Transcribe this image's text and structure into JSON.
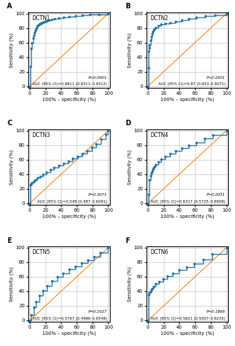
{
  "chart_data": [
    {
      "type": "step",
      "label": "A",
      "title": "DCTN1",
      "annotations": [
        "P<0.0001",
        "AUC (95% CI)=0.8811 (0.8311–0.9312)"
      ],
      "x_label": "100% – specificity (%)",
      "y_label": "Sensitivity (%)",
      "series": [
        {
          "type": "step",
          "marker": "square",
          "x": [
            0,
            1,
            2,
            3,
            4,
            5,
            6,
            7,
            8,
            9,
            10,
            11,
            12,
            13,
            14,
            15,
            16,
            17,
            18,
            19,
            20,
            22,
            25,
            28,
            32,
            37,
            43,
            50,
            58,
            67,
            77,
            88,
            100
          ],
          "values": [
            0,
            27,
            52,
            60,
            66,
            70,
            74,
            77,
            79,
            81,
            83,
            84,
            85,
            86,
            86,
            87,
            87,
            88,
            88,
            89,
            89,
            90,
            91,
            92,
            93,
            94,
            95,
            96,
            97,
            98,
            99,
            99,
            100
          ]
        },
        {
          "type": "line",
          "x": [
            0,
            100
          ],
          "values": [
            0,
            100
          ]
        }
      ],
      "xlim": [
        -2,
        102
      ],
      "ylim": [
        -2,
        102
      ],
      "xticks": [
        0,
        20,
        40,
        60,
        80,
        100
      ],
      "yticks": [
        0,
        20,
        40,
        60,
        80,
        100
      ],
      "grid": true
    },
    {
      "type": "step",
      "label": "B",
      "title": "DCTN2",
      "annotations": [
        "P<0.0001",
        "AUC (95% CI)=0.87 (0.833–0.9071)"
      ],
      "x_label": "100% – specificity (%)",
      "y_label": "Sensitivity (%)",
      "series": [
        {
          "type": "step",
          "marker": "square",
          "x": [
            0,
            0.5,
            1,
            1.5,
            2,
            3,
            4,
            5,
            6,
            7,
            8,
            10,
            13,
            17,
            22,
            28,
            35,
            43,
            52,
            62,
            73,
            85,
            100
          ],
          "values": [
            0,
            25,
            48,
            53,
            57,
            63,
            68,
            72,
            75,
            77,
            79,
            81,
            83,
            85,
            86,
            87,
            89,
            91,
            93,
            95,
            97,
            98,
            100
          ]
        },
        {
          "type": "line",
          "x": [
            0,
            100
          ],
          "values": [
            0,
            100
          ]
        }
      ],
      "xlim": [
        -2,
        102
      ],
      "ylim": [
        -2,
        102
      ],
      "xticks": [
        0,
        20,
        40,
        60,
        80,
        100
      ],
      "yticks": [
        0,
        20,
        40,
        60,
        80,
        100
      ],
      "grid": true
    },
    {
      "type": "step",
      "label": "C",
      "title": "DCTN3",
      "annotations": [
        "P=0.3071",
        "AUC (95% CI)=0.548 (0.487–0.6091)"
      ],
      "x_label": "100% – specificity (%)",
      "y_label": "Sensitivity (%)",
      "series": [
        {
          "type": "step",
          "marker": "square",
          "x": [
            0,
            1,
            2,
            3,
            5,
            7,
            10,
            13,
            17,
            21,
            26,
            31,
            37,
            43,
            49,
            55,
            61,
            67,
            73,
            79,
            85,
            91,
            97,
            100
          ],
          "values": [
            0,
            25,
            26,
            28,
            30,
            32,
            35,
            37,
            40,
            43,
            46,
            49,
            52,
            55,
            58,
            62,
            65,
            68,
            72,
            77,
            82,
            88,
            95,
            100
          ]
        },
        {
          "type": "line",
          "x": [
            0,
            100
          ],
          "values": [
            0,
            100
          ]
        }
      ],
      "xlim": [
        -2,
        102
      ],
      "ylim": [
        -2,
        102
      ],
      "xticks": [
        0,
        20,
        40,
        60,
        80,
        100
      ],
      "yticks": [
        0,
        20,
        40,
        60,
        80,
        100
      ],
      "grid": true
    },
    {
      "type": "step",
      "label": "D",
      "title": "DCTN4",
      "annotations": [
        "P=0.0051",
        "AUC (95% CI)=0.6317 (0.5725–0.6908)"
      ],
      "x_label": "100% – specificity (%)",
      "y_label": "Sensitivity (%)",
      "series": [
        {
          "type": "step",
          "marker": "square",
          "x": [
            0,
            1,
            2,
            3,
            4,
            5,
            6,
            7,
            8,
            10,
            13,
            17,
            22,
            28,
            35,
            43,
            52,
            62,
            72,
            83,
            100
          ],
          "values": [
            0,
            12,
            32,
            38,
            42,
            44,
            46,
            48,
            50,
            53,
            57,
            61,
            65,
            68,
            72,
            76,
            80,
            84,
            89,
            94,
            100
          ]
        },
        {
          "type": "line",
          "x": [
            0,
            100
          ],
          "values": [
            0,
            100
          ]
        }
      ],
      "xlim": [
        -2,
        102
      ],
      "ylim": [
        -2,
        102
      ],
      "xticks": [
        0,
        20,
        40,
        60,
        80,
        100
      ],
      "yticks": [
        0,
        20,
        40,
        60,
        80,
        100
      ],
      "grid": true
    },
    {
      "type": "step",
      "label": "E",
      "title": "DCTN5",
      "annotations": [
        "P=0.1027",
        "AUC (95% CI)=0.5767 (0.4986–0.6548)"
      ],
      "x_label": "100% – specificity (%)",
      "y_label": "Sensitivity (%)",
      "series": [
        {
          "type": "step",
          "marker": "square",
          "x": [
            0,
            2,
            5,
            8,
            12,
            17,
            22,
            28,
            35,
            42,
            50,
            58,
            66,
            74,
            82,
            90,
            100
          ],
          "values": [
            0,
            8,
            18,
            26,
            34,
            41,
            48,
            54,
            60,
            65,
            70,
            74,
            79,
            83,
            88,
            93,
            100
          ]
        },
        {
          "type": "line",
          "x": [
            0,
            100
          ],
          "values": [
            0,
            100
          ]
        }
      ],
      "xlim": [
        -2,
        102
      ],
      "ylim": [
        -2,
        102
      ],
      "xticks": [
        0,
        20,
        40,
        60,
        80,
        100
      ],
      "yticks": [
        0,
        20,
        40,
        60,
        80,
        100
      ],
      "grid": true
    },
    {
      "type": "step",
      "label": "F",
      "title": "DCTN6",
      "annotations": [
        "P=0.1866",
        "AUC (95% CI)=0.5621 (0.5007–0.6235)"
      ],
      "x_label": "100% – specificity (%)",
      "y_label": "Sensitivity (%)",
      "series": [
        {
          "type": "step",
          "marker": "square",
          "x": [
            0,
            1,
            2,
            3,
            4,
            5,
            7,
            10,
            14,
            19,
            25,
            32,
            40,
            49,
            59,
            70,
            82,
            100
          ],
          "values": [
            0,
            35,
            38,
            40,
            42,
            44,
            47,
            50,
            53,
            57,
            61,
            65,
            69,
            73,
            78,
            84,
            91,
            100
          ]
        },
        {
          "type": "line",
          "x": [
            0,
            100
          ],
          "values": [
            0,
            100
          ]
        }
      ],
      "xlim": [
        -2,
        102
      ],
      "ylim": [
        -2,
        102
      ],
      "xticks": [
        0,
        20,
        40,
        60,
        80,
        100
      ],
      "yticks": [
        0,
        20,
        40,
        60,
        80,
        100
      ],
      "grid": true
    }
  ]
}
